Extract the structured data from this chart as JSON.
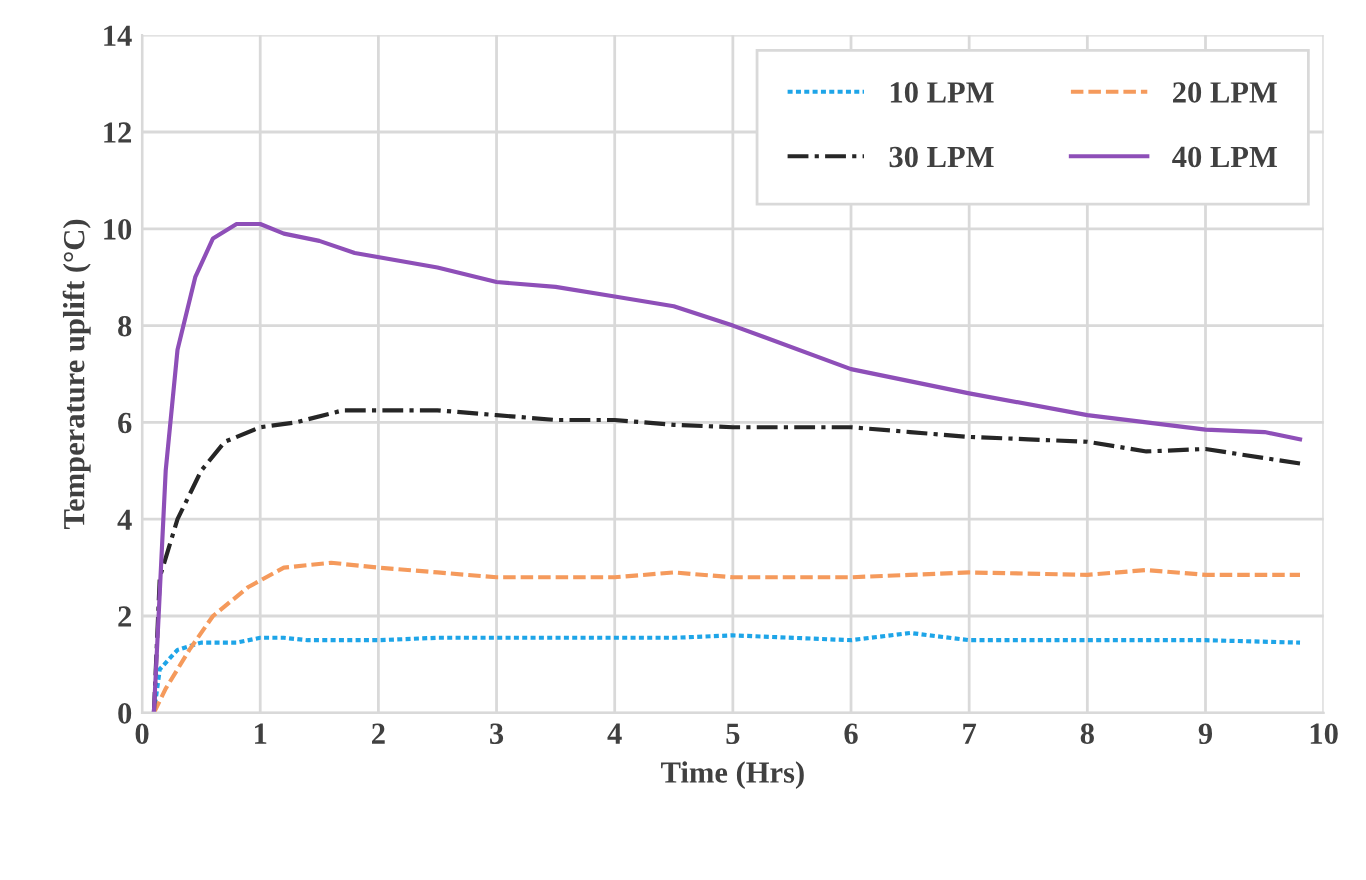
{
  "chart_data": {
    "type": "line",
    "xlabel": "Time (Hrs)",
    "ylabel": "Temperature uplift (°C)",
    "xlim": [
      0,
      10
    ],
    "ylim": [
      0,
      14
    ],
    "xticks": [
      0,
      1,
      2,
      3,
      4,
      5,
      6,
      7,
      8,
      9,
      10
    ],
    "yticks": [
      0,
      2,
      4,
      6,
      8,
      10,
      12,
      14
    ],
    "grid": true,
    "legend": "top right",
    "marker": "none",
    "series": [
      {
        "name": "10 LPM",
        "color": "#1ea5e8",
        "line_style": "dotted",
        "x": [
          0.1,
          0.15,
          0.3,
          0.5,
          0.8,
          1,
          1.2,
          1.4,
          1.7,
          2,
          2.5,
          3,
          4,
          4.5,
          5,
          6,
          6.5,
          7,
          8,
          9,
          9.8
        ],
        "values": [
          0,
          0.9,
          1.3,
          1.45,
          1.45,
          1.55,
          1.55,
          1.5,
          1.5,
          1.5,
          1.55,
          1.55,
          1.55,
          1.55,
          1.6,
          1.5,
          1.65,
          1.5,
          1.5,
          1.5,
          1.45
        ]
      },
      {
        "name": "20 LPM",
        "color": "#f59a5c",
        "line_style": "dashed",
        "x": [
          0.1,
          0.2,
          0.4,
          0.6,
          0.9,
          1.2,
          1.6,
          2,
          2.5,
          3,
          4,
          4.5,
          5,
          6,
          6.5,
          7,
          8,
          8.5,
          9,
          9.8
        ],
        "values": [
          0,
          0.5,
          1.3,
          2.0,
          2.6,
          3.0,
          3.1,
          3.0,
          2.9,
          2.8,
          2.8,
          2.9,
          2.8,
          2.8,
          2.85,
          2.9,
          2.85,
          2.95,
          2.85,
          2.85
        ]
      },
      {
        "name": "30 LPM",
        "color": "#262626",
        "line_style": "dashdot",
        "x": [
          0.1,
          0.15,
          0.3,
          0.5,
          0.7,
          1,
          1.3,
          1.7,
          2,
          2.5,
          3,
          3.5,
          4,
          4.5,
          5,
          6,
          6.5,
          7,
          7.5,
          8,
          8.5,
          9,
          9.8
        ],
        "values": [
          0,
          2.8,
          4,
          5,
          5.6,
          5.9,
          6.0,
          6.25,
          6.25,
          6.25,
          6.15,
          6.05,
          6.05,
          5.95,
          5.9,
          5.9,
          5.8,
          5.7,
          5.65,
          5.6,
          5.4,
          5.45,
          5.15
        ]
      },
      {
        "name": "40 LPM",
        "color": "#8e4fb8",
        "line_style": "solid",
        "x": [
          0.1,
          0.15,
          0.2,
          0.3,
          0.45,
          0.6,
          0.8,
          1.0,
          1.2,
          1.5,
          1.8,
          2.5,
          3,
          3.5,
          4,
          4.5,
          5,
          6,
          7,
          8,
          9,
          9.5,
          9.8
        ],
        "values": [
          0,
          2.5,
          5,
          7.5,
          9,
          9.8,
          10.1,
          10.1,
          9.9,
          9.75,
          9.5,
          9.2,
          8.9,
          8.8,
          8.6,
          8.4,
          8.0,
          7.1,
          6.6,
          6.15,
          5.85,
          5.8,
          5.65
        ]
      }
    ]
  }
}
